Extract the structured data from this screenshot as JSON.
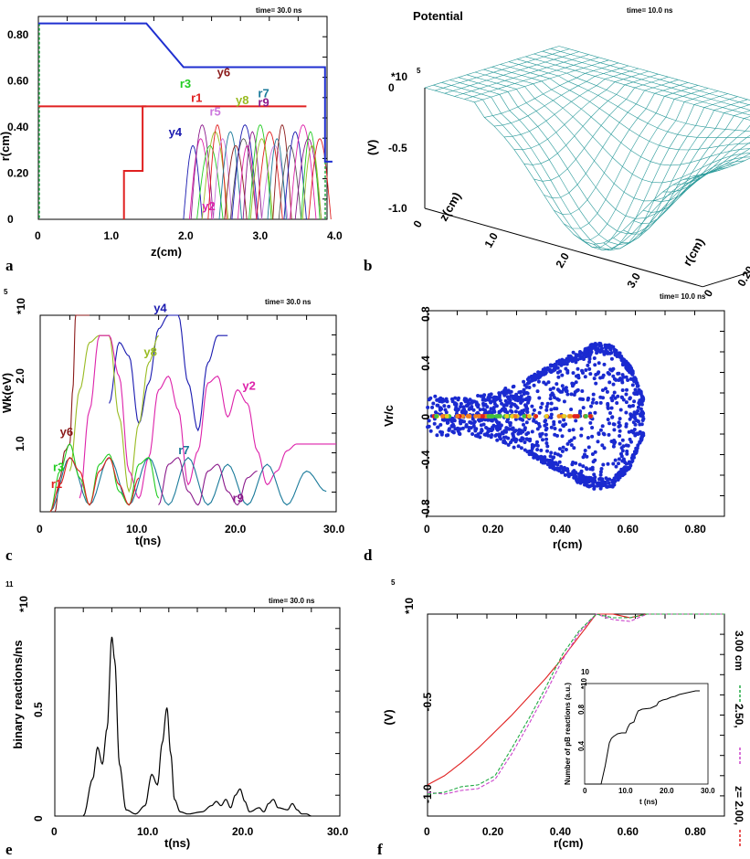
{
  "panel_letters": [
    "a",
    "b",
    "c",
    "d",
    "e",
    "f"
  ],
  "chart_data": [
    {
      "id": "a",
      "type": "line",
      "time_label": "time= 30.0  ns",
      "xlabel": "z(cm)",
      "ylabel": "r(cm)",
      "xlim": [
        0,
        4.0
      ],
      "ylim": [
        0,
        0.88
      ],
      "xticks": [
        "0",
        "1.0",
        "2.0",
        "3.0",
        "4.0"
      ],
      "yticks": [
        "0",
        "0.20",
        "0.40",
        "0.60",
        "0.80"
      ],
      "boundaries": [
        {
          "name": "outer",
          "color": "#1f2fd0",
          "x": [
            0,
            1.45,
            1.95,
            3.85,
            3.85,
            3.95
          ],
          "y": [
            0.85,
            0.85,
            0.66,
            0.66,
            0.25,
            0.25
          ]
        },
        {
          "name": "inner",
          "color": "#e02020",
          "x": [
            0,
            3.6
          ],
          "y": [
            0.49,
            0.49
          ]
        },
        {
          "name": "anode",
          "color": "#e02020",
          "x": [
            1.15,
            1.15,
            1.4,
            1.4,
            1.45,
            1.45
          ],
          "y": [
            0,
            0.21,
            0.21,
            0.49,
            0.49,
            0.49
          ]
        }
      ],
      "labels": [
        {
          "text": "r3",
          "color": "#22cc22",
          "x": 1.9,
          "y": 0.57
        },
        {
          "text": "r1",
          "color": "#e02020",
          "x": 2.05,
          "y": 0.51
        },
        {
          "text": "y6",
          "color": "#8b1a1a",
          "x": 2.4,
          "y": 0.62
        },
        {
          "text": "y8",
          "color": "#99bb22",
          "x": 2.65,
          "y": 0.5
        },
        {
          "text": "r7",
          "color": "#1a7a9a",
          "x": 2.95,
          "y": 0.53
        },
        {
          "text": "r9",
          "color": "#8b1a8b",
          "x": 2.95,
          "y": 0.49
        },
        {
          "text": "r5",
          "color": "#cc77dd",
          "x": 2.3,
          "y": 0.45
        },
        {
          "text": "y4",
          "color": "#1a1ab0",
          "x": 1.75,
          "y": 0.36
        },
        {
          "text": "y2",
          "color": "#dd22aa",
          "x": 2.2,
          "y": 0.04
        }
      ]
    },
    {
      "id": "b",
      "type": "surface",
      "title": "Potential",
      "time_label": "time= 10.0  ns",
      "zlabel": "(V)",
      "xlabel": "z(cm)",
      "ylabel": "r(cm)",
      "zscale": "*10",
      "zscale_exp": "5",
      "zticks": [
        "0",
        "-0.5",
        "-1.0"
      ],
      "xticks": [
        "0",
        "1.0",
        "2.0",
        "3.0"
      ],
      "yticks": [
        "0",
        "0.20",
        "0.40",
        "0.60",
        "0.80"
      ],
      "color": "#2a9a9a"
    },
    {
      "id": "c",
      "type": "line",
      "time_label": "time= 30.0  ns",
      "xlabel": "t(ns)",
      "ylabel": "Wk(eV)",
      "yscale": "*10",
      "yscale_exp": "5",
      "xlim": [
        0,
        30.0
      ],
      "ylim": [
        0,
        2.9
      ],
      "xticks": [
        "0",
        "10.0",
        "20.0",
        "30.0"
      ],
      "yticks": [
        "1.0",
        "2.0"
      ],
      "labels": [
        {
          "text": "y4",
          "color": "#1a1ab0",
          "x": 11.5,
          "y": 2.95
        },
        {
          "text": "y8",
          "color": "#99bb22",
          "x": 10.5,
          "y": 2.3
        },
        {
          "text": "y2",
          "color": "#dd22aa",
          "x": 20.5,
          "y": 1.8
        },
        {
          "text": "y6",
          "color": "#8b1a1a",
          "x": 2.0,
          "y": 1.12
        },
        {
          "text": "r7",
          "color": "#1a7a9a",
          "x": 14.0,
          "y": 0.85
        },
        {
          "text": "r3",
          "color": "#22cc22",
          "x": 1.3,
          "y": 0.6
        },
        {
          "text": "r1",
          "color": "#e02020",
          "x": 1.1,
          "y": 0.35
        },
        {
          "text": "r9",
          "color": "#8b1a8b",
          "x": 19.5,
          "y": 0.14
        }
      ],
      "series": [
        {
          "color": "#1a1ab0",
          "x": [
            7,
            8,
            9,
            10,
            11,
            12,
            13,
            14,
            15,
            16,
            17,
            18,
            19
          ],
          "y": [
            1.6,
            2.5,
            2.3,
            1.3,
            1.9,
            2.7,
            2.9,
            2.9,
            1.9,
            1.2,
            2.2,
            2.6,
            2.6
          ]
        },
        {
          "color": "#99bb22",
          "x": [
            3,
            4,
            5,
            6,
            7,
            8,
            9,
            10,
            11,
            12
          ],
          "y": [
            0.6,
            1.8,
            2.5,
            2.6,
            2.6,
            1.4,
            0.3,
            1.3,
            2.2,
            2.6
          ]
        },
        {
          "color": "#dd22aa",
          "x": [
            4,
            5,
            6,
            7,
            8,
            9,
            10,
            11,
            12,
            13,
            14,
            15,
            16,
            17,
            18,
            19,
            20,
            21,
            22,
            23,
            24,
            25,
            26,
            27,
            28,
            29,
            30
          ],
          "y": [
            0.2,
            1.5,
            2.6,
            2.6,
            2.0,
            0.6,
            0.2,
            0.8,
            1.8,
            2.0,
            1.5,
            0.4,
            0.9,
            1.9,
            2.0,
            1.4,
            1.8,
            1.6,
            0.9,
            0.4,
            0.6,
            0.9,
            1.0,
            1.0,
            1.0,
            1.0,
            1.0
          ]
        },
        {
          "color": "#8b1a1a",
          "x": [
            1.5,
            2,
            2.5,
            3,
            3.3,
            3.6,
            4,
            4.5,
            5
          ],
          "y": [
            0,
            0.5,
            0.9,
            1.0,
            1.8,
            2.9,
            2.9,
            2.9,
            2.9
          ]
        },
        {
          "color": "#1a7a9a",
          "x": [
            1,
            3,
            5,
            7,
            9,
            11,
            13,
            15,
            17,
            19,
            21,
            23,
            25,
            27,
            29
          ],
          "y": [
            0,
            0.8,
            0.1,
            0.8,
            0.1,
            0.8,
            0.1,
            0.8,
            0.1,
            0.7,
            0.1,
            0.7,
            0.1,
            0.6,
            0.3
          ]
        },
        {
          "color": "#22cc22",
          "x": [
            1,
            2,
            3,
            4,
            5,
            6,
            7,
            8,
            9,
            10,
            11,
            12
          ],
          "y": [
            0,
            0.6,
            1.0,
            0.5,
            0.1,
            0.7,
            0.85,
            0.3,
            0.1,
            0.7,
            0.8,
            0.2
          ]
        },
        {
          "color": "#e02020",
          "x": [
            1,
            2,
            3,
            4,
            5,
            6,
            7,
            8,
            9,
            10
          ],
          "y": [
            0,
            0.4,
            0.8,
            0.6,
            0.1,
            0.6,
            0.8,
            0.4,
            0.1,
            0.5
          ]
        },
        {
          "color": "#8b1a8b",
          "x": [
            12,
            13,
            14,
            15,
            16,
            17,
            18,
            19,
            20,
            21,
            22
          ],
          "y": [
            0.1,
            0.7,
            0.8,
            0.3,
            0.1,
            0.6,
            0.7,
            0.3,
            0.1,
            0.5,
            0.6
          ]
        }
      ]
    },
    {
      "id": "d",
      "type": "scatter",
      "time_label": "time= 10.0  ns",
      "xlabel": "r(cm)",
      "ylabel": "Vr/c",
      "xlim": [
        0,
        0.88
      ],
      "ylim": [
        -0.85,
        0.8
      ],
      "xticks": [
        "0",
        "0.20",
        "0.40",
        "0.60",
        "0.80"
      ],
      "yticks": [
        "0.8",
        "0.4",
        "0",
        "-0.4",
        "-0.8"
      ],
      "color": "#1a2ad0",
      "envelope": {
        "r": [
          0,
          0.1,
          0.2,
          0.3,
          0.4,
          0.45,
          0.5,
          0.55,
          0.6,
          0.64
        ],
        "vmax": [
          0.16,
          0.14,
          0.18,
          0.3,
          0.45,
          0.52,
          0.57,
          0.55,
          0.4,
          0.15
        ]
      },
      "axis_band_colors": [
        "#e02020",
        "#f08020",
        "#e8d020",
        "#40c040"
      ]
    },
    {
      "id": "e",
      "type": "line",
      "time_label": "time= 30.0  ns",
      "xlabel": "t(ns)",
      "ylabel": "binary reactions/ns",
      "yscale": "*10",
      "yscale_exp": "11",
      "xlim": [
        0,
        30.0
      ],
      "ylim": [
        0,
        1.0
      ],
      "xticks": [
        "0",
        "10.0",
        "20.0",
        "30.0"
      ],
      "yticks": [
        "0",
        "0.5"
      ],
      "series": [
        {
          "color": "#000000",
          "x": [
            3.0,
            4.0,
            4.5,
            5.0,
            5.5,
            6.0,
            6.3,
            6.8,
            7.5,
            8.5,
            9.5,
            10.2,
            10.8,
            11.3,
            11.8,
            12.2,
            12.6,
            13.2,
            14.0,
            15.5,
            16.5,
            17.0,
            17.5,
            18.0,
            18.5,
            19.0,
            19.5,
            20.0,
            20.5,
            21.5,
            22.0,
            22.5,
            23.0,
            23.5,
            24.5,
            25.0,
            25.5,
            26.0,
            26.5,
            27.0
          ],
          "y": [
            0.0,
            0.18,
            0.33,
            0.25,
            0.42,
            0.86,
            0.75,
            0.25,
            0.03,
            0.01,
            0.05,
            0.2,
            0.15,
            0.35,
            0.52,
            0.3,
            0.08,
            0.02,
            0.01,
            0.02,
            0.05,
            0.07,
            0.05,
            0.08,
            0.04,
            0.1,
            0.13,
            0.07,
            0.02,
            0.04,
            0.02,
            0.06,
            0.08,
            0.04,
            0.03,
            0.06,
            0.03,
            0.01,
            0.01,
            0.0
          ]
        }
      ]
    },
    {
      "id": "f",
      "type": "line",
      "xlabel": "r(cm)",
      "ylabel": "(V)",
      "yscale": "*10",
      "yscale_exp": "5",
      "xlim": [
        0,
        0.88
      ],
      "ylim": [
        -1.05,
        0.0
      ],
      "xticks": [
        "0",
        "0.20",
        "0.40",
        "0.60",
        "0.80"
      ],
      "yticks": [
        "-0.5",
        "-1.0"
      ],
      "legend": [
        "3.00 cm",
        "2.50,",
        "z= 2.00,"
      ],
      "series": [
        {
          "name": "z= 2.00,",
          "color": "#e02020",
          "x": [
            0,
            0.05,
            0.1,
            0.15,
            0.2,
            0.25,
            0.3,
            0.35,
            0.4,
            0.45,
            0.5,
            0.55,
            0.6,
            0.65,
            0.88
          ],
          "y": [
            -0.93,
            -0.88,
            -0.81,
            -0.73,
            -0.64,
            -0.55,
            -0.45,
            -0.35,
            -0.24,
            -0.12,
            0.0,
            0.0,
            -0.02,
            0.0,
            0.0
          ]
        },
        {
          "name": "2.50,",
          "color": "#cc44cc",
          "x": [
            0,
            0.05,
            0.1,
            0.15,
            0.2,
            0.25,
            0.3,
            0.35,
            0.4,
            0.45,
            0.5,
            0.55,
            0.6,
            0.65,
            0.88
          ],
          "y": [
            -0.97,
            -0.98,
            -0.96,
            -0.95,
            -0.9,
            -0.76,
            -0.6,
            -0.43,
            -0.25,
            -0.1,
            0.0,
            -0.03,
            -0.04,
            0.0,
            0.0
          ]
        },
        {
          "name": "3.00 cm",
          "color": "#22aa44",
          "x": [
            0,
            0.05,
            0.1,
            0.15,
            0.2,
            0.25,
            0.3,
            0.35,
            0.4,
            0.45,
            0.5,
            0.55,
            0.6,
            0.65,
            0.88
          ],
          "y": [
            -0.98,
            -0.97,
            -0.94,
            -0.93,
            -0.88,
            -0.73,
            -0.57,
            -0.4,
            -0.22,
            -0.09,
            0.0,
            -0.02,
            -0.02,
            0.0,
            0.0
          ]
        }
      ],
      "inset": {
        "ylabel": "Number of pB reactions (a.u.)",
        "xlabel": "t (ns)",
        "yscale": "*10",
        "yscale_exp": "10",
        "xticks": [
          "0",
          "10.0",
          "20.0",
          "30.0"
        ],
        "yticks": [
          "0.4",
          "0.8"
        ],
        "xlim": [
          0,
          30
        ],
        "ylim": [
          0,
          1.1
        ],
        "x": [
          0,
          4,
          5,
          6,
          6.5,
          7,
          8,
          9,
          10,
          10.5,
          11,
          12,
          12.5,
          13,
          14,
          16,
          17,
          17.5,
          18,
          19,
          20,
          21,
          22,
          23,
          24,
          25,
          26,
          27,
          28
        ],
        "y": [
          0,
          0,
          0.2,
          0.45,
          0.5,
          0.52,
          0.55,
          0.56,
          0.56,
          0.62,
          0.66,
          0.68,
          0.75,
          0.8,
          0.82,
          0.83,
          0.85,
          0.86,
          0.9,
          0.92,
          0.93,
          0.95,
          0.96,
          0.98,
          0.99,
          1.0,
          1.01,
          1.02,
          1.02
        ]
      }
    }
  ]
}
